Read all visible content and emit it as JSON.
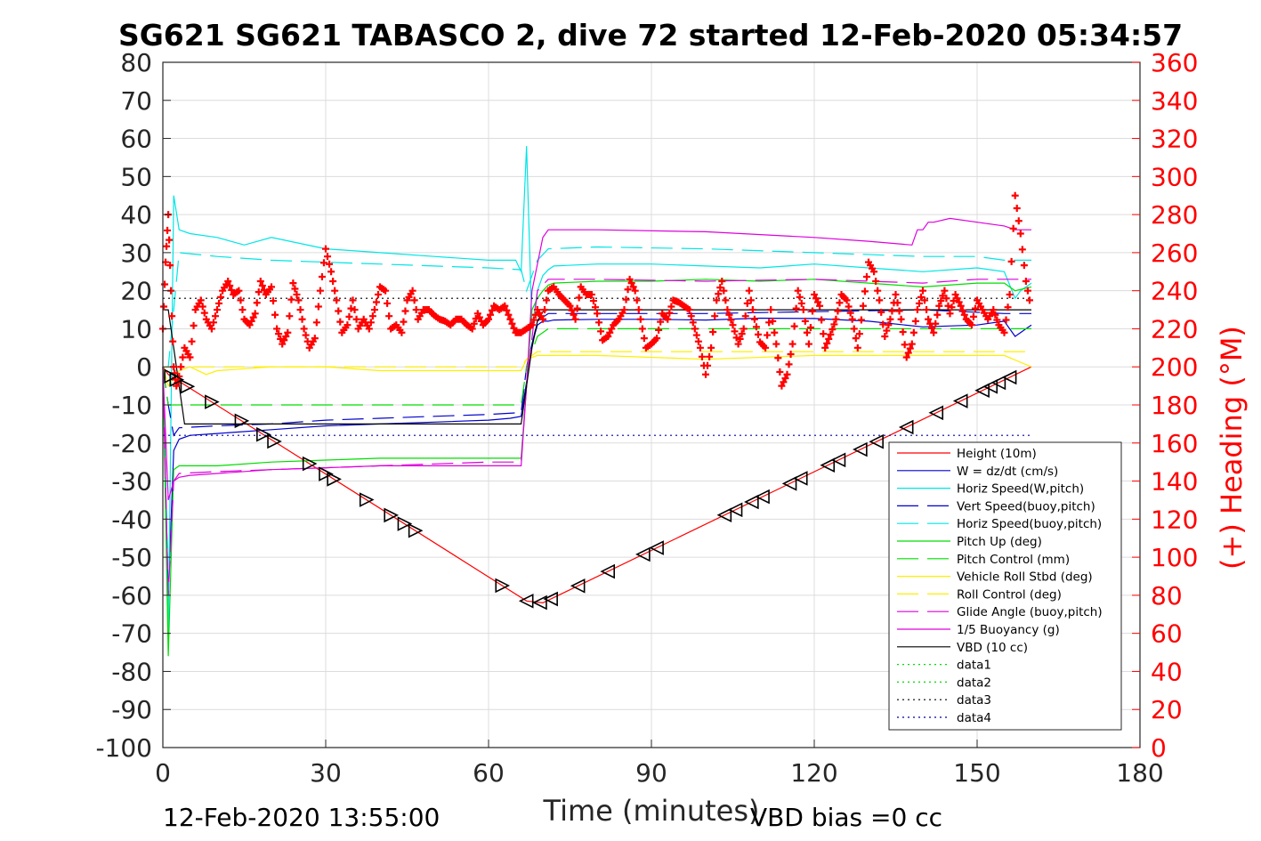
{
  "chart_data": {
    "type": "line",
    "title": "SG621 SG621 TABASCO 2, dive 72 started 12-Feb-2020 05:34:57",
    "xlabel": "Time (minutes)",
    "ylabel": "",
    "ylabel_right": "(+) Heading (°M)",
    "xlim": [
      0,
      180
    ],
    "ylim": [
      -100,
      80
    ],
    "ylim_right": [
      0,
      360
    ],
    "x_ticks": [
      "0",
      "30",
      "60",
      "90",
      "120",
      "150",
      "180"
    ],
    "y_ticks": [
      "80",
      "70",
      "60",
      "50",
      "40",
      "30",
      "20",
      "10",
      "0",
      "-10",
      "-20",
      "-30",
      "-40",
      "-50",
      "-60",
      "-70",
      "-80",
      "-90",
      "-100"
    ],
    "y_ticks_right": [
      "360",
      "340",
      "320",
      "300",
      "280",
      "260",
      "240",
      "220",
      "200",
      "180",
      "160",
      "140",
      "120",
      "100",
      "80",
      "60",
      "40",
      "20",
      "0"
    ],
    "grid": true,
    "legend_position": "bottom-right",
    "footer_left": "12-Feb-2020 13:55:00",
    "footer_right": "VBD bias =0 cc",
    "colors": {
      "height": "#ff0000",
      "w": "#0000cd",
      "horiz_w": "#00e5e5",
      "vert_buoy": "#0000cd",
      "horiz_buoy": "#00e5e5",
      "pitch": "#00dd00",
      "pitch_control": "#00dd00",
      "roll": "#ffee00",
      "roll_control": "#ffee00",
      "glide": "#dd00dd",
      "buoyancy": "#dd00dd",
      "vbd": "#000000",
      "data": "#00dd00",
      "data_blue": "#000099",
      "heading": "#ff0000"
    },
    "series": [
      {
        "name": "Height (10m)",
        "key": "height",
        "dash": "",
        "x": [
          0,
          1,
          67,
          70,
          160
        ],
        "y": [
          0,
          -2,
          -61.5,
          -62,
          0
        ]
      },
      {
        "name": "W = dz/dt (cm/s)",
        "key": "w",
        "dash": "",
        "x": [
          0,
          1,
          2,
          3,
          5,
          10,
          20,
          30,
          40,
          50,
          60,
          64,
          66,
          67,
          68,
          69,
          70,
          71,
          72,
          80,
          90,
          100,
          110,
          120,
          130,
          140,
          150,
          155,
          157,
          158,
          159,
          160
        ],
        "y": [
          0,
          -60,
          -22,
          -19,
          -18,
          -17.5,
          -16.5,
          -15.5,
          -15,
          -14.5,
          -14,
          -13.5,
          -13,
          -4,
          6,
          11,
          12,
          12,
          12.3,
          12.5,
          12.5,
          12.3,
          12.8,
          12.7,
          12,
          10.5,
          11,
          12,
          8,
          9,
          10,
          11
        ]
      },
      {
        "name": "Horiz Speed(W,pitch)",
        "key": "horiz_w",
        "dash": "",
        "x": [
          0,
          1,
          2,
          3,
          5,
          10,
          15,
          20,
          30,
          40,
          50,
          60,
          65,
          66,
          67,
          68,
          69,
          70,
          71,
          72,
          80,
          90,
          100,
          110,
          120,
          130,
          140,
          150,
          155,
          157,
          158,
          159,
          160
        ],
        "y": [
          0,
          -70,
          45,
          36,
          35,
          34,
          32,
          34,
          31,
          30,
          29,
          28,
          28,
          25,
          58,
          10,
          20,
          24,
          25.5,
          26.5,
          27,
          27,
          26.5,
          26,
          27,
          26,
          25,
          26,
          25,
          18,
          20,
          21,
          22
        ]
      },
      {
        "name": "Vert Speed(buoy,pitch)",
        "key": "vert_buoy",
        "dash": "24 10",
        "x": [
          0,
          1,
          2,
          3,
          10,
          20,
          30,
          40,
          50,
          60,
          66,
          67,
          69,
          71,
          80,
          100,
          120,
          140,
          155,
          160
        ],
        "y": [
          0,
          -10,
          -18,
          -16,
          -15.5,
          -15,
          -14,
          -13.5,
          -13,
          -12.5,
          -12,
          0,
          12,
          14,
          14,
          14,
          14.5,
          15,
          14,
          14
        ]
      },
      {
        "name": "Horiz Speed(buoy,pitch)",
        "key": "horiz_buoy",
        "dash": "24 10",
        "x": [
          0,
          1,
          3,
          10,
          20,
          30,
          40,
          50,
          60,
          66,
          67,
          69,
          71,
          80,
          100,
          120,
          140,
          150,
          155,
          160
        ],
        "y": [
          0,
          0,
          30,
          29,
          28,
          27.5,
          27,
          26.5,
          26,
          25.5,
          20,
          28,
          31,
          31.5,
          31,
          30,
          29,
          29,
          28,
          28
        ]
      },
      {
        "name": "Pitch Up (deg)",
        "key": "pitch",
        "dash": "",
        "x": [
          0,
          1,
          2,
          3,
          5,
          10,
          20,
          30,
          40,
          50,
          60,
          66,
          67,
          68,
          69,
          70,
          71,
          72,
          80,
          90,
          100,
          110,
          120,
          130,
          140,
          150,
          155,
          157,
          160
        ],
        "y": [
          0,
          -76,
          -27,
          -26,
          -26,
          -26,
          -25,
          -24.5,
          -24,
          -24,
          -24,
          -24,
          -5,
          15,
          18,
          20,
          21.5,
          22,
          22.5,
          22.5,
          23,
          22.5,
          23,
          22,
          21,
          22,
          22,
          20,
          21
        ]
      },
      {
        "name": "Pitch Control (mm)",
        "key": "pitch_control",
        "dash": "24 10",
        "x": [
          0,
          1,
          3,
          66,
          67,
          69,
          71,
          160
        ],
        "y": [
          0,
          -10,
          -10,
          -10,
          0,
          8,
          10,
          10
        ]
      },
      {
        "name": "Vehicle Roll Stbd (deg)",
        "key": "roll",
        "dash": "",
        "x": [
          0,
          1,
          3,
          5,
          8,
          10,
          20,
          30,
          40,
          50,
          60,
          66,
          67,
          69,
          71,
          80,
          100,
          120,
          140,
          155,
          160
        ],
        "y": [
          0,
          -5,
          -1,
          0,
          -2,
          -1,
          0,
          0,
          -1,
          -1,
          -1,
          -1,
          2,
          3,
          3,
          3,
          2,
          3,
          3,
          3,
          0
        ]
      },
      {
        "name": "Roll Control (deg)",
        "key": "roll_control",
        "dash": "24 10",
        "x": [
          0,
          1,
          3,
          66,
          67,
          69,
          71,
          160
        ],
        "y": [
          0,
          0,
          0,
          0,
          2,
          4,
          4,
          4
        ]
      },
      {
        "name": "Glide Angle (buoy,pitch)",
        "key": "glide",
        "dash": "24 10",
        "x": [
          0,
          1,
          2,
          3,
          10,
          20,
          30,
          40,
          50,
          60,
          66,
          67,
          69,
          71,
          80,
          100,
          120,
          140,
          150,
          155,
          160
        ],
        "y": [
          0,
          -60,
          -30,
          -28,
          -27.5,
          -27,
          -26.5,
          -26,
          -25.5,
          -25,
          -25,
          -5,
          20,
          23,
          23,
          22.5,
          23,
          22,
          23,
          23,
          23
        ]
      },
      {
        "name": "1/5 Buoyancy (g)",
        "key": "buoyancy",
        "dash": "",
        "x": [
          0,
          1,
          2,
          3,
          5,
          10,
          20,
          30,
          40,
          50,
          60,
          66,
          67,
          68,
          70,
          71,
          80,
          100,
          120,
          130,
          138,
          139,
          140,
          141,
          142,
          145,
          150,
          155,
          157,
          160
        ],
        "y": [
          0,
          -35,
          -30,
          -29,
          -28.5,
          -28,
          -27,
          -26.5,
          -26,
          -26,
          -26,
          -26,
          -5,
          20,
          34,
          36,
          36,
          35.5,
          34,
          33,
          32,
          36,
          36,
          38,
          38,
          39,
          38,
          37,
          36,
          36
        ]
      },
      {
        "name": "VBD (10 cc)",
        "key": "vbd",
        "dash": "",
        "x": [
          0,
          1,
          4,
          66,
          67,
          68,
          69,
          70,
          71,
          160
        ],
        "y": [
          15,
          15,
          -15,
          -15,
          -5,
          5,
          12,
          14.5,
          15,
          15
        ]
      },
      {
        "name": "data1",
        "key": "data",
        "dash": "2 4",
        "x": [],
        "y": []
      },
      {
        "name": "data2",
        "key": "data",
        "dash": "2 4",
        "x": [],
        "y": []
      },
      {
        "name": "data3",
        "key": "vbd",
        "dash": "2 4",
        "x": [
          0,
          160
        ],
        "y": [
          18,
          18
        ]
      },
      {
        "name": "data4",
        "key": "data_blue",
        "dash": "2 4",
        "x": [
          0,
          160
        ],
        "y": [
          -18,
          -18
        ]
      }
    ],
    "heading": {
      "x": [
        0,
        0.5,
        1,
        1.5,
        2,
        2.5,
        3,
        4,
        5,
        6,
        7,
        8,
        9,
        10,
        11,
        12,
        13,
        14,
        15,
        16,
        17,
        18,
        19,
        20,
        21,
        22,
        23,
        24,
        25,
        26,
        27,
        28,
        29,
        30,
        31,
        32,
        33,
        34,
        35,
        36,
        37,
        38,
        39,
        40,
        41,
        42,
        43,
        44,
        45,
        46,
        47,
        48,
        49,
        50,
        51,
        52,
        53,
        54,
        55,
        56,
        57,
        58,
        59,
        60,
        61,
        62,
        63,
        64,
        65,
        66,
        67,
        68,
        69,
        70,
        71,
        72,
        73,
        74,
        75,
        76,
        77,
        78,
        79,
        80,
        81,
        82,
        83,
        84,
        85,
        86,
        87,
        88,
        89,
        90,
        91,
        92,
        93,
        94,
        95,
        96,
        97,
        98,
        99,
        100,
        101,
        102,
        103,
        104,
        105,
        106,
        107,
        108,
        109,
        110,
        111,
        112,
        113,
        114,
        115,
        116,
        117,
        118,
        119,
        120,
        121,
        122,
        123,
        124,
        125,
        126,
        127,
        128,
        129,
        130,
        131,
        132,
        133,
        134,
        135,
        136,
        137,
        138,
        139,
        140,
        141,
        142,
        143,
        144,
        145,
        146,
        147,
        148,
        149,
        150,
        151,
        152,
        153,
        154,
        155,
        156,
        157,
        158,
        159,
        160
      ],
      "y": [
        220,
        255,
        280,
        240,
        200,
        190,
        195,
        210,
        205,
        230,
        235,
        225,
        220,
        230,
        240,
        245,
        238,
        240,
        225,
        222,
        228,
        245,
        238,
        242,
        220,
        212,
        218,
        244,
        235,
        220,
        210,
        215,
        240,
        262,
        250,
        235,
        218,
        222,
        235,
        220,
        225,
        220,
        230,
        242,
        240,
        220,
        222,
        218,
        235,
        240,
        225,
        230,
        230,
        227,
        225,
        224,
        222,
        225,
        225,
        222,
        220,
        228,
        222,
        225,
        232,
        230,
        232,
        225,
        218,
        218,
        220,
        222,
        230,
        225,
        240,
        242,
        238,
        235,
        232,
        225,
        242,
        238,
        238,
        228,
        214,
        216,
        222,
        225,
        230,
        246,
        240,
        225,
        210,
        212,
        215,
        228,
        225,
        235,
        234,
        232,
        230,
        220,
        210,
        196,
        210,
        235,
        245,
        230,
        222,
        212,
        220,
        240,
        225,
        213,
        210,
        230,
        212,
        190,
        196,
        212,
        240,
        230,
        212,
        238,
        232,
        210,
        217,
        225,
        238,
        235,
        225,
        210,
        232,
        255,
        250,
        235,
        216,
        225,
        238,
        225,
        205,
        212,
        230,
        240,
        225,
        218,
        232,
        240,
        228,
        238,
        232,
        225,
        222,
        235,
        230,
        225,
        230,
        222,
        218,
        238,
        290,
        270,
        245,
        230
      ]
    },
    "depth_markers": {
      "descent_x": [
        1.5,
        2.5,
        4.5,
        9,
        14.5,
        18.5,
        20.5,
        27,
        30,
        31.5,
        37.5,
        42,
        44.5,
        46.5,
        62.5
      ],
      "ascent_x": [
        67,
        69.5,
        71.5,
        76.5,
        82,
        88.5,
        91,
        103.5,
        105.5,
        108.5,
        110.5,
        115.5,
        117.5,
        122.5,
        124.5,
        128.5,
        131.5,
        137,
        142.5,
        147,
        151,
        152.5,
        154,
        156
      ]
    }
  },
  "legend": {
    "items": [
      "Height (10m)",
      "W = dz/dt (cm/s)",
      "Horiz Speed(W,pitch)",
      "Vert Speed(buoy,pitch)",
      "Horiz Speed(buoy,pitch)",
      "Pitch Up (deg)",
      "Pitch Control (mm)",
      "Vehicle Roll Stbd (deg)",
      "Roll Control (deg)",
      "Glide Angle (buoy,pitch)",
      "1/5 Buoyancy (g)",
      "VBD (10 cc)",
      "data1",
      "data2",
      "data3",
      "data4"
    ]
  }
}
